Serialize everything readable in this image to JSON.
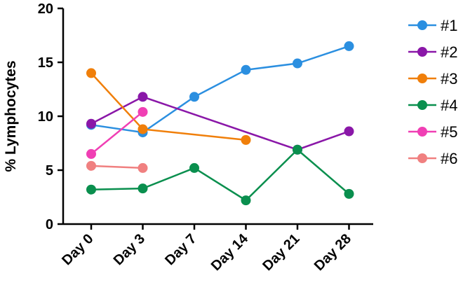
{
  "chart_data": {
    "type": "line",
    "categories": [
      "Day 0",
      "Day 3",
      "Day 7",
      "Day 14",
      "Day 21",
      "Day 28"
    ],
    "ylabel": "% Lymphocytes",
    "xlabel": "",
    "ylim": [
      0,
      20
    ],
    "yticks": [
      0,
      5,
      10,
      15,
      20
    ],
    "grid": false,
    "legend_position": "right",
    "series": [
      {
        "name": "#1",
        "color": "#2b8fe0",
        "values": [
          9.2,
          8.5,
          11.8,
          14.3,
          14.9,
          16.5
        ]
      },
      {
        "name": "#2",
        "color": "#8a17a8",
        "values": [
          9.3,
          11.8,
          null,
          null,
          6.9,
          8.6
        ]
      },
      {
        "name": "#3",
        "color": "#f07f0a",
        "values": [
          14.0,
          8.8,
          null,
          7.8,
          null,
          null
        ]
      },
      {
        "name": "#4",
        "color": "#0a8f4e",
        "values": [
          3.2,
          3.3,
          5.2,
          2.2,
          6.9,
          2.8
        ]
      },
      {
        "name": "#5",
        "color": "#f03fb4",
        "values": [
          6.5,
          10.4,
          null,
          null,
          null,
          null
        ]
      },
      {
        "name": "#6",
        "color": "#f08080",
        "values": [
          5.4,
          5.2,
          null,
          null,
          null,
          null
        ]
      }
    ]
  }
}
